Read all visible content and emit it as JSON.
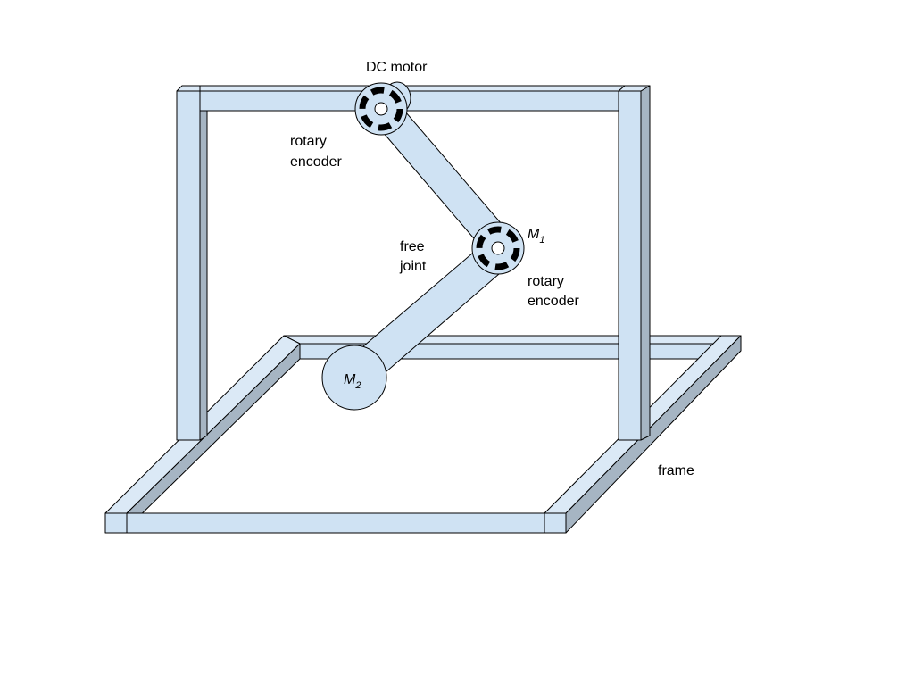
{
  "labels": {
    "dc_motor": "DC motor",
    "rotary_encoder_top": [
      "rotary",
      "encoder"
    ],
    "m1": "M",
    "m1_sub": "1",
    "free_joint": [
      "free",
      "joint"
    ],
    "rotary_encoder_mid": [
      "rotary",
      "encoder"
    ],
    "m2": "M",
    "m2_sub": "2",
    "frame": "frame"
  },
  "colors": {
    "bar_face": "#cfe2f3",
    "bar_top": "#dbe9f6",
    "bar_side": "#a6b5c3",
    "stroke": "#000000",
    "encoder_marks": "#000000"
  }
}
